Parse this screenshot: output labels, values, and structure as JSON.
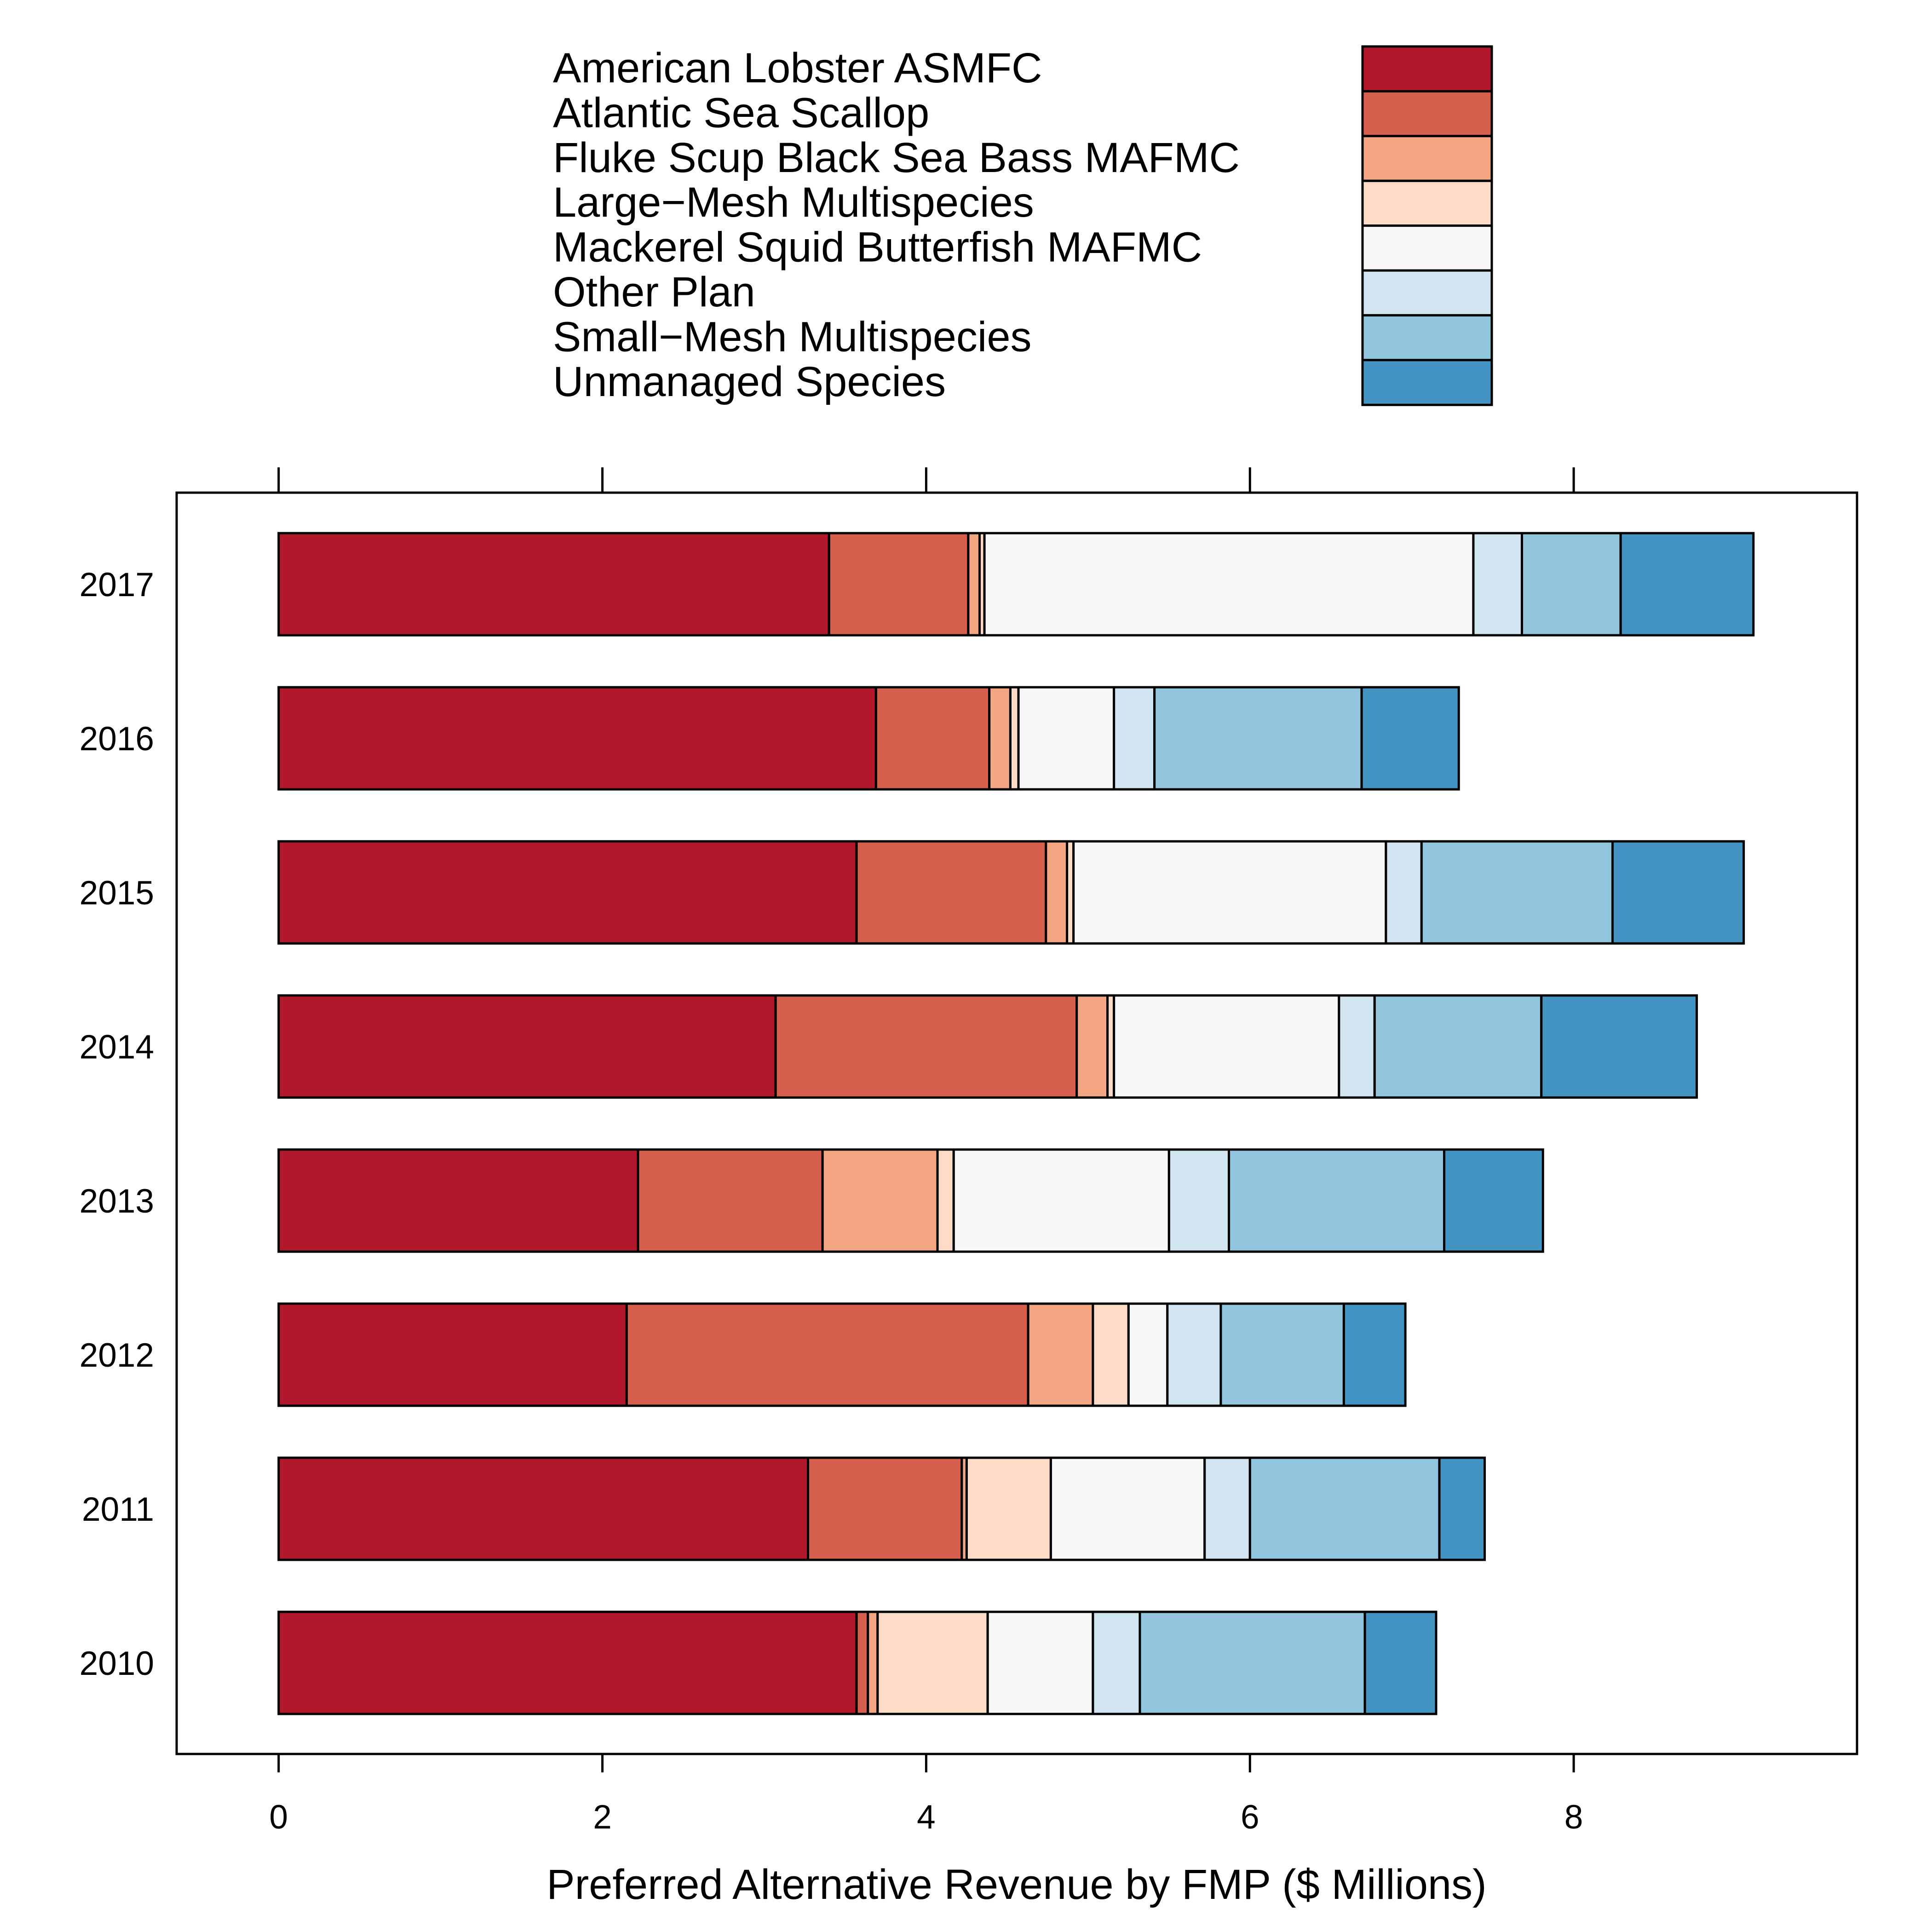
{
  "chart_data": {
    "type": "bar",
    "orientation": "horizontal",
    "stacked": true,
    "categories": [
      "2010",
      "2011",
      "2012",
      "2013",
      "2014",
      "2015",
      "2016",
      "2017"
    ],
    "xlabel": "Preferred Alternative Revenue by FMP ($ Millions)",
    "ylabel": "",
    "xlim": [
      -0.63,
      9.75
    ],
    "xticks": [
      "0",
      "2",
      "4",
      "6",
      "8"
    ],
    "ticks_top": true,
    "grid": false,
    "legend_position": "top",
    "series": [
      {
        "name": "American Lobster ASMFC",
        "color": "#b2182b",
        "values": [
          3.57,
          3.27,
          2.15,
          2.22,
          3.07,
          3.57,
          3.69,
          3.4
        ]
      },
      {
        "name": "Atlantic Sea Scallop",
        "color": "#d6604d",
        "values": [
          0.07,
          0.95,
          2.48,
          1.14,
          1.86,
          1.17,
          0.7,
          0.86
        ]
      },
      {
        "name": "Fluke Scup Black Sea Bass MAFMC",
        "color": "#f4a582",
        "values": [
          0.06,
          0.03,
          0.4,
          0.71,
          0.19,
          0.13,
          0.13,
          0.07
        ]
      },
      {
        "name": "Large−Mesh Multispecies",
        "color": "#fddbc7",
        "values": [
          0.68,
          0.52,
          0.22,
          0.1,
          0.04,
          0.04,
          0.05,
          0.03
        ]
      },
      {
        "name": "Mackerel Squid Butterfish MAFMC",
        "color": "#f7f7f7",
        "values": [
          0.65,
          0.95,
          0.24,
          1.33,
          1.39,
          1.93,
          0.59,
          3.02
        ]
      },
      {
        "name": "Other Plan",
        "color": "#d1e5f0",
        "values": [
          0.29,
          0.28,
          0.33,
          0.37,
          0.22,
          0.22,
          0.25,
          0.3
        ]
      },
      {
        "name": "Small−Mesh Multispecies",
        "color": "#92c5de",
        "values": [
          1.39,
          1.17,
          0.76,
          1.33,
          1.03,
          1.18,
          1.28,
          0.61
        ]
      },
      {
        "name": "Unmanaged Species",
        "color": "#4393c3",
        "values": [
          0.44,
          0.28,
          0.38,
          0.61,
          0.96,
          0.81,
          0.6,
          0.82
        ]
      }
    ]
  }
}
